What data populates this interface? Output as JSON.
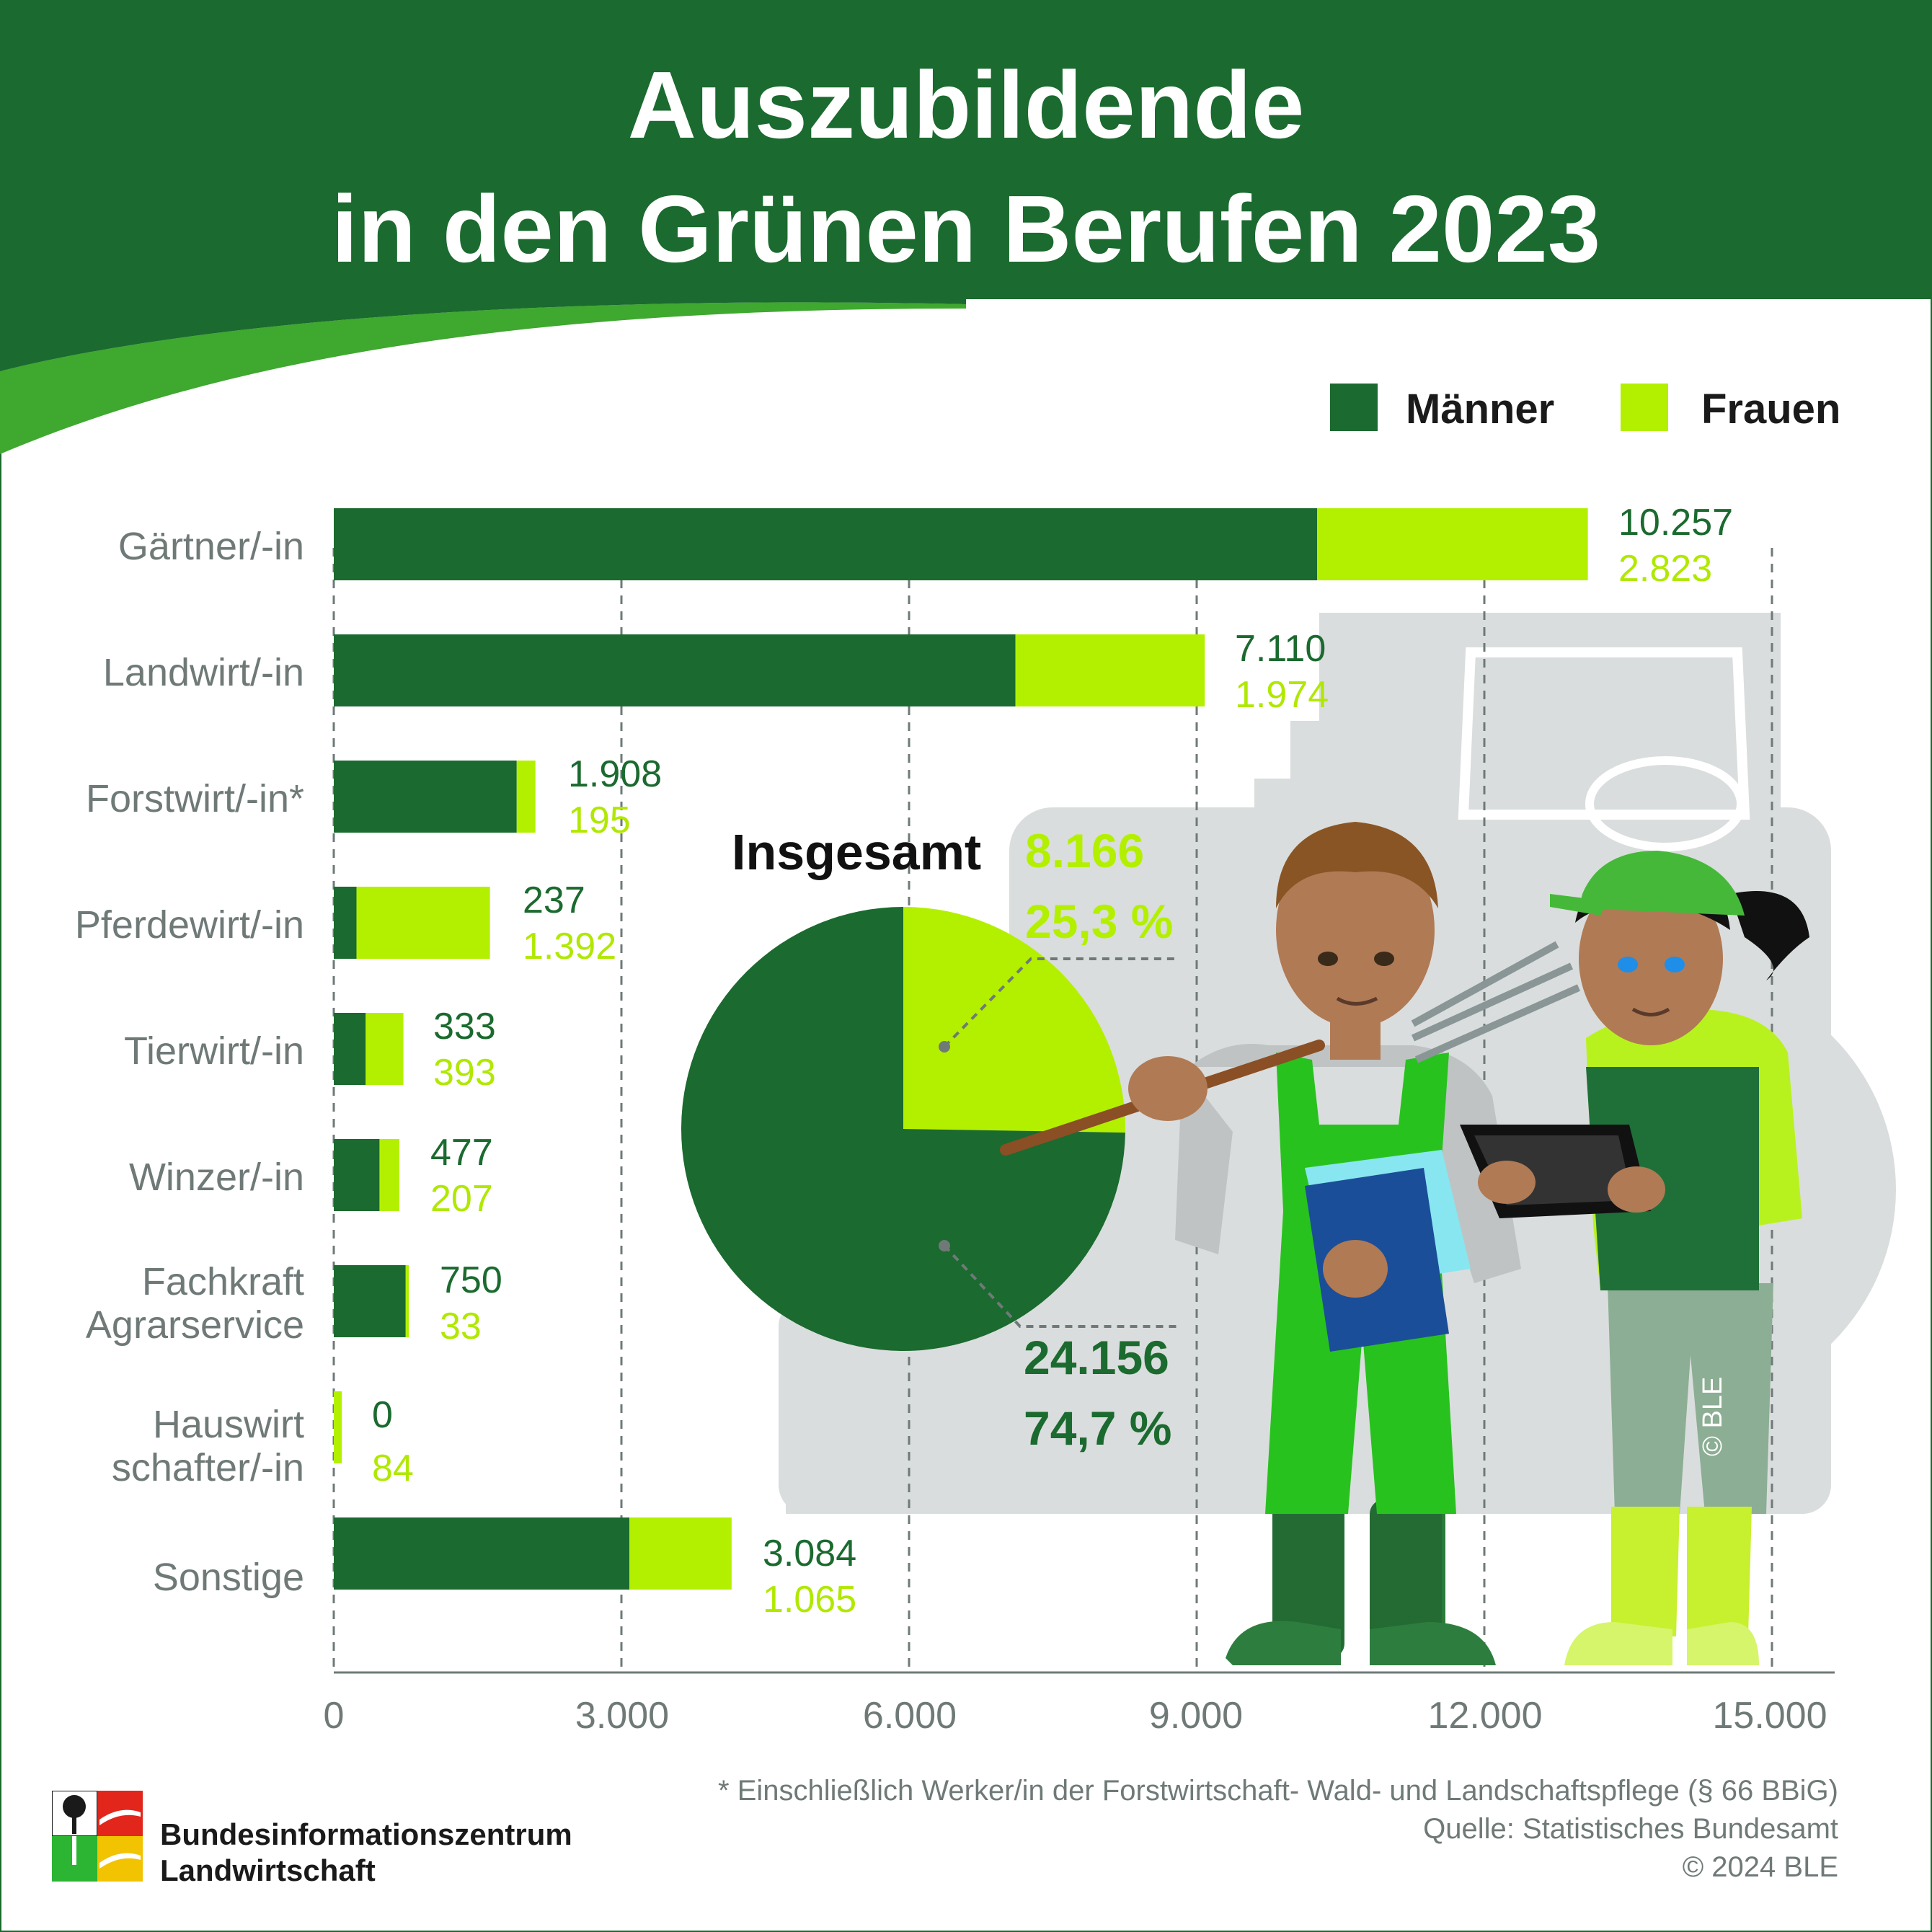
{
  "header": {
    "title_line1": "Auszubildende",
    "title_line2": "in den Grünen Berufen 2023"
  },
  "legend": {
    "men": "Männer",
    "women": "Frauen"
  },
  "colors": {
    "men": "#1b6a2f",
    "women": "#b3f000",
    "header": "#1b6a2f",
    "background_art": "#d9dcdc"
  },
  "chart_data": [
    {
      "type": "bar",
      "orientation": "horizontal",
      "stacked": true,
      "categories": [
        "Gärtner/-in",
        "Landwirt/-in",
        "Forstwirt/-in*",
        "Pferdewirt/-in",
        "Tierwirt/-in",
        "Winzer/-in",
        "Fachkraft Agrarservice",
        "Hauswirt schafter/-in",
        "Sonstige"
      ],
      "series": [
        {
          "name": "Männer",
          "values": [
            10257,
            7110,
            1908,
            237,
            333,
            477,
            750,
            0,
            3084
          ]
        },
        {
          "name": "Frauen",
          "values": [
            2823,
            1974,
            195,
            1392,
            393,
            207,
            33,
            84,
            1065
          ]
        }
      ],
      "value_labels": {
        "men": [
          "10.257",
          "7.110",
          "1.908",
          "237",
          "333",
          "477",
          "750",
          "0",
          "3.084"
        ],
        "women": [
          "2.823",
          "1.974",
          "195",
          "1.392",
          "393",
          "207",
          "33",
          "84",
          "1.065"
        ]
      },
      "xlim": [
        0,
        15600
      ],
      "xticks": [
        0,
        3000,
        6000,
        9000,
        12000,
        15000
      ],
      "xtick_labels": [
        "0",
        "3.000",
        "6.000",
        "9.000",
        "12.000",
        "15.000"
      ],
      "grid": "vertical dashed",
      "legend_position": "top-right"
    },
    {
      "type": "pie",
      "title": "Insgesamt",
      "slices": [
        {
          "name": "Frauen",
          "value": 8166,
          "label": "8.166",
          "percent_label": "25,3 %"
        },
        {
          "name": "Männer",
          "value": 24156,
          "label": "24.156",
          "percent_label": "74,7 %"
        }
      ]
    }
  ],
  "footer": {
    "footnote": "* Einschließlich Werker/in der Forstwirtschaft- Wald- und Landschaftspflege (§ 66 BBiG)",
    "source": "Quelle: Statistisches Bundesamt",
    "copyright": "© 2024 BLE",
    "org_line1": "Bundesinformationszentrum",
    "org_line2": "Landwirtschaft",
    "watermark": "© BLE"
  }
}
